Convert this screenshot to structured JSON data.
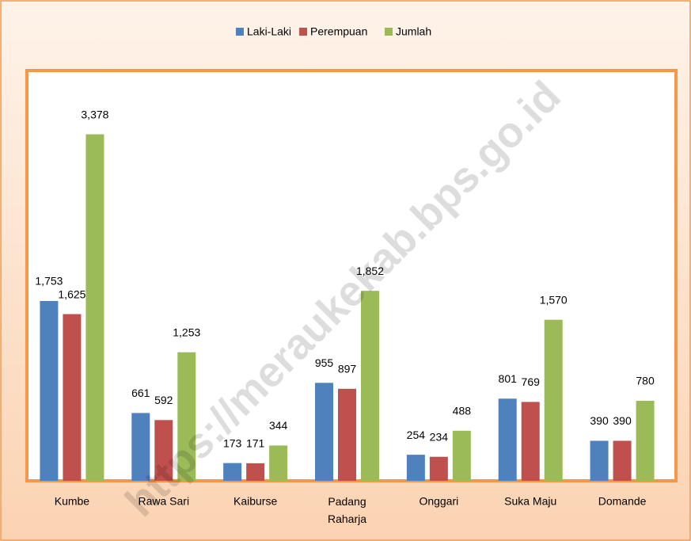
{
  "chart_data": {
    "type": "bar",
    "categories": [
      "Kumbe",
      "Rawa Sari",
      "Kaiburse",
      "Padang Raharja",
      "Onggari",
      "Suka Maju",
      "Domande"
    ],
    "series": [
      {
        "name": "Laki-Laki",
        "color": "#4f81bd",
        "values": [
          1753,
          661,
          173,
          955,
          254,
          801,
          390
        ],
        "value_labels": [
          "1,753",
          "661",
          "173",
          "955",
          "254",
          "801",
          "390"
        ]
      },
      {
        "name": "Perempuan",
        "color": "#c0504d",
        "values": [
          1625,
          592,
          171,
          897,
          234,
          769,
          390
        ],
        "value_labels": [
          "1,625",
          "592",
          "171",
          "897",
          "234",
          "769",
          "390"
        ]
      },
      {
        "name": "Jumlah",
        "color": "#9bbb59",
        "values": [
          3378,
          1253,
          344,
          1852,
          488,
          1570,
          780
        ],
        "value_labels": [
          "3,378",
          "1,253",
          "344",
          "1,852",
          "488",
          "1,570",
          "780"
        ]
      }
    ],
    "ylim": [
      0,
      4000
    ],
    "watermark": "https://meraukekab.bps.go.id"
  }
}
